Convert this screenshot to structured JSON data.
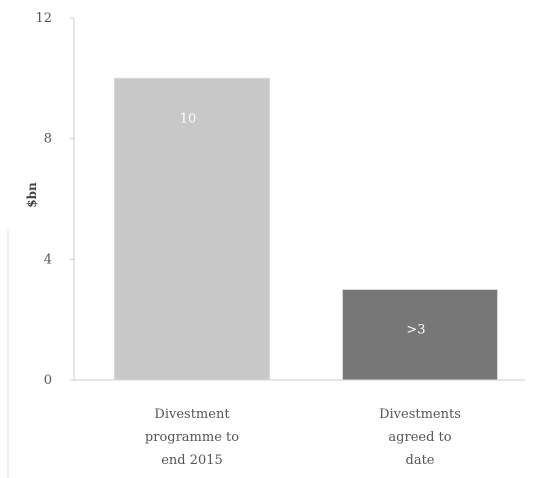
{
  "chart_data": {
    "type": "bar",
    "title": "",
    "xlabel": "",
    "ylabel": "$bn",
    "ylim": [
      0,
      12
    ],
    "yticks": [
      "0",
      "4",
      "8",
      "12"
    ],
    "grid": false,
    "categories": [
      [
        "Divestment",
        "programme to",
        "end 2015"
      ],
      [
        "Divestments",
        "agreed to",
        "date"
      ]
    ],
    "values": [
      10,
      3
    ],
    "data_labels": [
      "10",
      ">3"
    ],
    "colors": [
      "#c8c8c8",
      "#777777"
    ]
  }
}
